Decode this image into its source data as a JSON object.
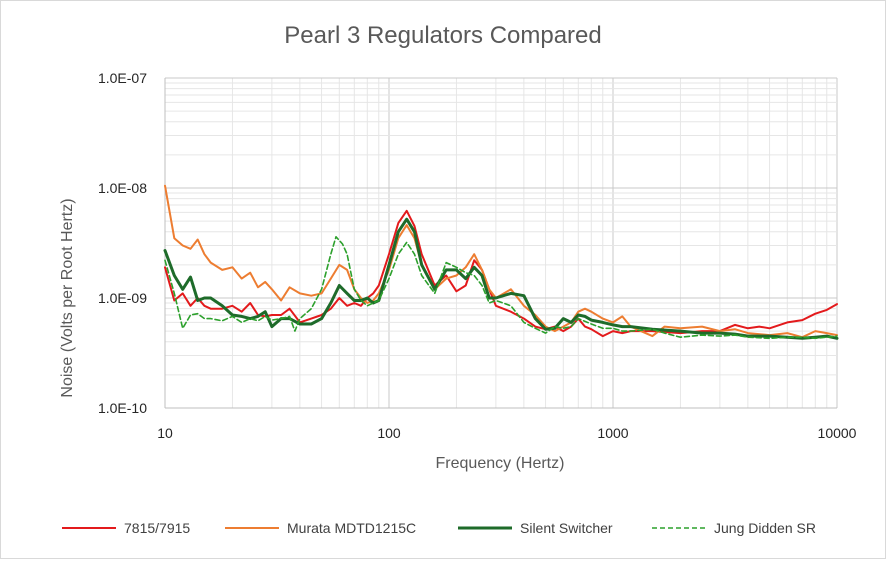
{
  "chart_data": {
    "type": "line",
    "title": "Pearl 3 Regulators Compared",
    "xlabel": "Frequency (Hertz)",
    "ylabel": "Noise (Volts per Root Hertz)",
    "x_scale": "log",
    "y_scale": "log",
    "xlim": [
      10,
      10000
    ],
    "ylim": [
      1e-10,
      1e-07
    ],
    "x_tick_labels": [
      "10",
      "100",
      "1000",
      "10000"
    ],
    "x_tick_values": [
      10,
      100,
      1000,
      10000
    ],
    "y_tick_labels": [
      "1.0E-10",
      "1.0E-09",
      "1.0E-08",
      "1.0E-07"
    ],
    "y_tick_values": [
      1e-10,
      1e-09,
      1e-08,
      1e-07
    ],
    "grid": "major and minor",
    "legend_position": "bottom",
    "series": [
      {
        "name": "7815/7915",
        "color": "#e31a1c",
        "dash": "solid",
        "points": [
          [
            10,
            1.9e-09
          ],
          [
            11,
            9.5e-10
          ],
          [
            12,
            1.1e-09
          ],
          [
            13,
            8.5e-10
          ],
          [
            14,
            1e-09
          ],
          [
            15,
            8.5e-10
          ],
          [
            16,
            8e-10
          ],
          [
            18,
            8e-10
          ],
          [
            20,
            8.5e-10
          ],
          [
            22,
            7.5e-10
          ],
          [
            24,
            9e-10
          ],
          [
            26,
            7e-10
          ],
          [
            28,
            6.8e-10
          ],
          [
            30,
            7e-10
          ],
          [
            33,
            7e-10
          ],
          [
            36,
            8e-10
          ],
          [
            40,
            6e-10
          ],
          [
            45,
            6.5e-10
          ],
          [
            50,
            7e-10
          ],
          [
            55,
            8e-10
          ],
          [
            60,
            1e-09
          ],
          [
            65,
            8.5e-10
          ],
          [
            70,
            9e-10
          ],
          [
            75,
            8.5e-10
          ],
          [
            80,
            1e-09
          ],
          [
            85,
            1.1e-09
          ],
          [
            90,
            1.3e-09
          ],
          [
            100,
            2.5e-09
          ],
          [
            110,
            4.8e-09
          ],
          [
            120,
            6.2e-09
          ],
          [
            130,
            4.5e-09
          ],
          [
            140,
            2.5e-09
          ],
          [
            160,
            1.3e-09
          ],
          [
            180,
            1.6e-09
          ],
          [
            200,
            1.15e-09
          ],
          [
            220,
            1.3e-09
          ],
          [
            240,
            2.2e-09
          ],
          [
            260,
            1.8e-09
          ],
          [
            280,
            1.2e-09
          ],
          [
            300,
            8.5e-10
          ],
          [
            350,
            7.5e-10
          ],
          [
            400,
            6.5e-10
          ],
          [
            450,
            5.5e-10
          ],
          [
            500,
            5.2e-10
          ],
          [
            550,
            5.5e-10
          ],
          [
            600,
            5e-10
          ],
          [
            650,
            5.5e-10
          ],
          [
            700,
            6.5e-10
          ],
          [
            750,
            5.5e-10
          ],
          [
            800,
            5.2e-10
          ],
          [
            900,
            4.5e-10
          ],
          [
            1000,
            5e-10
          ],
          [
            1100,
            4.8e-10
          ],
          [
            1200,
            5e-10
          ],
          [
            1500,
            5e-10
          ],
          [
            2000,
            4.8e-10
          ],
          [
            2500,
            5e-10
          ],
          [
            3000,
            5e-10
          ],
          [
            3500,
            5.7e-10
          ],
          [
            4000,
            5.3e-10
          ],
          [
            4500,
            5.5e-10
          ],
          [
            5000,
            5.3e-10
          ],
          [
            6000,
            6e-10
          ],
          [
            7000,
            6.3e-10
          ],
          [
            8000,
            7.2e-10
          ],
          [
            9000,
            7.8e-10
          ],
          [
            10000,
            8.8e-10
          ]
        ]
      },
      {
        "name": "Murata MDTD1215C",
        "color": "#ed7d31",
        "dash": "solid",
        "points": [
          [
            10,
            1.05e-08
          ],
          [
            11,
            3.5e-09
          ],
          [
            12,
            3e-09
          ],
          [
            13,
            2.8e-09
          ],
          [
            14,
            3.4e-09
          ],
          [
            15,
            2.5e-09
          ],
          [
            16,
            2.1e-09
          ],
          [
            18,
            1.8e-09
          ],
          [
            20,
            1.9e-09
          ],
          [
            22,
            1.5e-09
          ],
          [
            24,
            1.7e-09
          ],
          [
            26,
            1.25e-09
          ],
          [
            28,
            1.4e-09
          ],
          [
            30,
            1.2e-09
          ],
          [
            33,
            9.5e-10
          ],
          [
            36,
            1.25e-09
          ],
          [
            40,
            1.1e-09
          ],
          [
            45,
            1.05e-09
          ],
          [
            50,
            1.1e-09
          ],
          [
            55,
            1.5e-09
          ],
          [
            60,
            2e-09
          ],
          [
            65,
            1.8e-09
          ],
          [
            70,
            1.2e-09
          ],
          [
            75,
            1e-09
          ],
          [
            80,
            9e-10
          ],
          [
            85,
            9.5e-10
          ],
          [
            90,
            1.1e-09
          ],
          [
            100,
            1.8e-09
          ],
          [
            110,
            3.5e-09
          ],
          [
            120,
            4.6e-09
          ],
          [
            130,
            3.5e-09
          ],
          [
            140,
            2e-09
          ],
          [
            160,
            1.2e-09
          ],
          [
            180,
            1.5e-09
          ],
          [
            200,
            1.6e-09
          ],
          [
            220,
            1.9e-09
          ],
          [
            240,
            2.5e-09
          ],
          [
            260,
            1.8e-09
          ],
          [
            280,
            1.2e-09
          ],
          [
            300,
            1e-09
          ],
          [
            350,
            1.2e-09
          ],
          [
            400,
            8.5e-10
          ],
          [
            450,
            7e-10
          ],
          [
            500,
            5.5e-10
          ],
          [
            550,
            5e-10
          ],
          [
            600,
            5.5e-10
          ],
          [
            650,
            6e-10
          ],
          [
            700,
            7.5e-10
          ],
          [
            750,
            8e-10
          ],
          [
            800,
            7.5e-10
          ],
          [
            900,
            6.5e-10
          ],
          [
            1000,
            6e-10
          ],
          [
            1100,
            6.8e-10
          ],
          [
            1200,
            5.5e-10
          ],
          [
            1500,
            4.5e-10
          ],
          [
            1700,
            5.5e-10
          ],
          [
            2000,
            5.3e-10
          ],
          [
            2500,
            5.5e-10
          ],
          [
            3000,
            5e-10
          ],
          [
            3500,
            5.2e-10
          ],
          [
            4000,
            4.8e-10
          ],
          [
            5000,
            4.6e-10
          ],
          [
            6000,
            4.8e-10
          ],
          [
            7000,
            4.4e-10
          ],
          [
            8000,
            5e-10
          ],
          [
            9000,
            4.8e-10
          ],
          [
            10000,
            4.6e-10
          ]
        ]
      },
      {
        "name": "Silent Switcher",
        "color": "#1e6b2a",
        "dash": "solid",
        "points": [
          [
            10,
            2.7e-09
          ],
          [
            11,
            1.6e-09
          ],
          [
            12,
            1.2e-09
          ],
          [
            13,
            1.55e-09
          ],
          [
            14,
            9.5e-10
          ],
          [
            15,
            1e-09
          ],
          [
            16,
            1e-09
          ],
          [
            18,
            8.5e-10
          ],
          [
            20,
            7e-10
          ],
          [
            22,
            6.8e-10
          ],
          [
            24,
            6.5e-10
          ],
          [
            26,
            6.8e-10
          ],
          [
            28,
            7.5e-10
          ],
          [
            30,
            5.5e-10
          ],
          [
            33,
            6.5e-10
          ],
          [
            36,
            6.5e-10
          ],
          [
            40,
            5.8e-10
          ],
          [
            45,
            5.8e-10
          ],
          [
            50,
            6.5e-10
          ],
          [
            55,
            9e-10
          ],
          [
            60,
            1.3e-09
          ],
          [
            65,
            1.1e-09
          ],
          [
            70,
            9.5e-10
          ],
          [
            75,
            9.5e-10
          ],
          [
            80,
            1e-09
          ],
          [
            85,
            9e-10
          ],
          [
            90,
            9.5e-10
          ],
          [
            100,
            2e-09
          ],
          [
            110,
            4e-09
          ],
          [
            120,
            5.2e-09
          ],
          [
            130,
            4e-09
          ],
          [
            140,
            2e-09
          ],
          [
            160,
            1.2e-09
          ],
          [
            180,
            1.8e-09
          ],
          [
            200,
            1.8e-09
          ],
          [
            220,
            1.5e-09
          ],
          [
            240,
            1.9e-09
          ],
          [
            260,
            1.6e-09
          ],
          [
            280,
            1e-09
          ],
          [
            300,
            1e-09
          ],
          [
            350,
            1.1e-09
          ],
          [
            400,
            1.05e-09
          ],
          [
            450,
            6.5e-10
          ],
          [
            500,
            5.2e-10
          ],
          [
            550,
            5.3e-10
          ],
          [
            600,
            6.5e-10
          ],
          [
            650,
            6e-10
          ],
          [
            700,
            7e-10
          ],
          [
            750,
            6.8e-10
          ],
          [
            800,
            6.3e-10
          ],
          [
            900,
            6e-10
          ],
          [
            1000,
            5.7e-10
          ],
          [
            1100,
            5.5e-10
          ],
          [
            1200,
            5.5e-10
          ],
          [
            1500,
            5.2e-10
          ],
          [
            2000,
            5e-10
          ],
          [
            2500,
            4.8e-10
          ],
          [
            3000,
            4.8e-10
          ],
          [
            3500,
            4.7e-10
          ],
          [
            4000,
            4.5e-10
          ],
          [
            5000,
            4.5e-10
          ],
          [
            6000,
            4.4e-10
          ],
          [
            7000,
            4.3e-10
          ],
          [
            8000,
            4.4e-10
          ],
          [
            9000,
            4.5e-10
          ],
          [
            10000,
            4.3e-10
          ]
        ]
      },
      {
        "name": "Jung Didden SR",
        "color": "#2ca02c",
        "dash": "dashed",
        "points": [
          [
            10,
            2.2e-09
          ],
          [
            11,
            1.1e-09
          ],
          [
            12,
            5.3e-10
          ],
          [
            13,
            7e-10
          ],
          [
            14,
            7.2e-10
          ],
          [
            15,
            6.5e-10
          ],
          [
            16,
            6.5e-10
          ],
          [
            18,
            6.2e-10
          ],
          [
            20,
            6.8e-10
          ],
          [
            22,
            6e-10
          ],
          [
            24,
            6.5e-10
          ],
          [
            26,
            6.2e-10
          ],
          [
            28,
            6.8e-10
          ],
          [
            30,
            6.3e-10
          ],
          [
            33,
            6.5e-10
          ],
          [
            36,
            6.8e-10
          ],
          [
            38,
            5e-10
          ],
          [
            40,
            6.5e-10
          ],
          [
            45,
            8e-10
          ],
          [
            50,
            1.2e-09
          ],
          [
            55,
            2.5e-09
          ],
          [
            58,
            3.6e-09
          ],
          [
            62,
            3.1e-09
          ],
          [
            65,
            2.5e-09
          ],
          [
            70,
            1.2e-09
          ],
          [
            75,
            9.5e-10
          ],
          [
            80,
            8.5e-10
          ],
          [
            85,
            9e-10
          ],
          [
            90,
            9.5e-10
          ],
          [
            100,
            1.5e-09
          ],
          [
            110,
            2.5e-09
          ],
          [
            120,
            3.2e-09
          ],
          [
            130,
            2.5e-09
          ],
          [
            140,
            1.6e-09
          ],
          [
            160,
            1.1e-09
          ],
          [
            180,
            2.1e-09
          ],
          [
            200,
            1.9e-09
          ],
          [
            220,
            1.7e-09
          ],
          [
            240,
            1.6e-09
          ],
          [
            260,
            1.3e-09
          ],
          [
            280,
            9e-10
          ],
          [
            300,
            9.5e-10
          ],
          [
            350,
            8.5e-10
          ],
          [
            400,
            6e-10
          ],
          [
            450,
            5.3e-10
          ],
          [
            500,
            4.8e-10
          ],
          [
            550,
            5.5e-10
          ],
          [
            600,
            5.3e-10
          ],
          [
            650,
            5.5e-10
          ],
          [
            700,
            6.5e-10
          ],
          [
            800,
            5.8e-10
          ],
          [
            900,
            5.3e-10
          ],
          [
            1000,
            5.3e-10
          ],
          [
            1100,
            5e-10
          ],
          [
            1200,
            5e-10
          ],
          [
            1500,
            5.2e-10
          ],
          [
            1700,
            4.8e-10
          ],
          [
            2000,
            4.4e-10
          ],
          [
            2500,
            4.6e-10
          ],
          [
            3000,
            4.5e-10
          ],
          [
            3500,
            4.6e-10
          ],
          [
            4000,
            4.4e-10
          ],
          [
            5000,
            4.3e-10
          ],
          [
            6000,
            4.4e-10
          ],
          [
            7000,
            4.4e-10
          ],
          [
            8000,
            4.3e-10
          ],
          [
            9000,
            4.4e-10
          ],
          [
            10000,
            4.5e-10
          ]
        ]
      }
    ]
  }
}
